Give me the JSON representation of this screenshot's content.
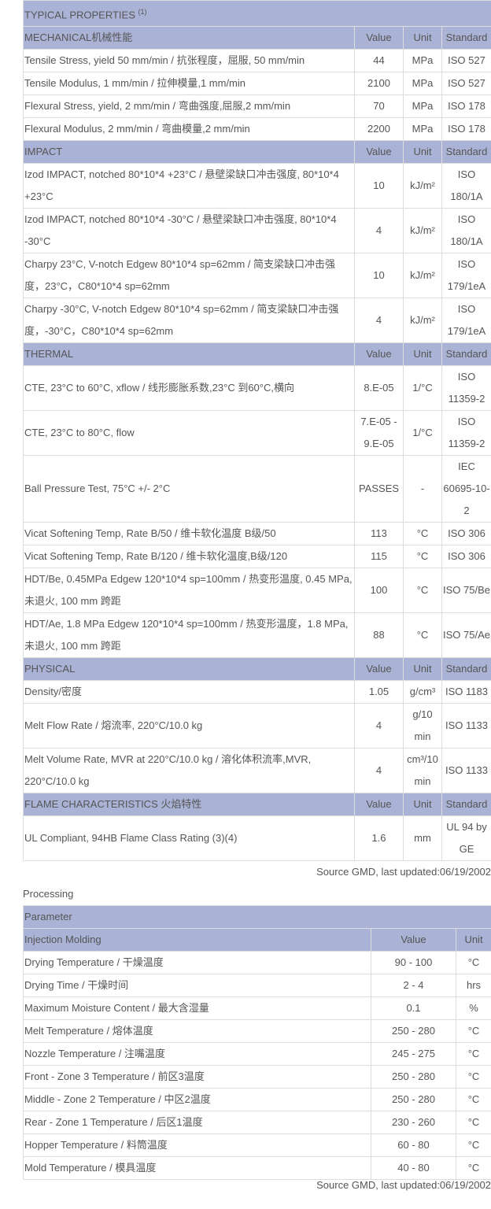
{
  "properties": {
    "title": "TYPICAL PROPERTIES",
    "title_note": "(1)",
    "sections": [
      {
        "header": [
          "MECHANICAL机械性能",
          "Value",
          "Unit",
          "Standard"
        ],
        "rows": [
          [
            "Tensile Stress, yield 50 mm/min / 抗张程度，屈服, 50 mm/min",
            "44",
            "MPa",
            "ISO 527"
          ],
          [
            "Tensile Modulus, 1 mm/min / 拉伸模量,1 mm/min",
            "2100",
            "MPa",
            "ISO 527"
          ],
          [
            "Flexural Stress, yield, 2 mm/min / 弯曲强度,屈服,2 mm/min",
            "70",
            "MPa",
            "ISO 178"
          ],
          [
            "Flexural Modulus, 2 mm/min / 弯曲模量,2 mm/min",
            "2200",
            "MPa",
            "ISO 178"
          ]
        ]
      },
      {
        "header": [
          "IMPACT",
          "Value",
          "Unit",
          "Standard"
        ],
        "rows": [
          [
            "Izod IMPACT, notched 80*10*4 +23°C / 悬壁梁缺口冲击强度, 80*10*4 +23°C",
            "10",
            "kJ/m²",
            "ISO 180/1A"
          ],
          [
            "Izod IMPACT, notched 80*10*4 -30°C / 悬壁梁缺口冲击强度, 80*10*4 -30°C",
            "4",
            "kJ/m²",
            "ISO 180/1A"
          ],
          [
            "Charpy 23°C, V-notch Edgew 80*10*4 sp=62mm / 简支梁缺口冲击强度，23°C，C80*10*4 sp=62mm",
            "10",
            "kJ/m²",
            "ISO 179/1eA"
          ],
          [
            "Charpy -30°C, V-notch Edgew 80*10*4 sp=62mm / 简支梁缺口冲击强度，-30°C，C80*10*4 sp=62mm",
            "4",
            "kJ/m²",
            "ISO 179/1eA"
          ]
        ]
      },
      {
        "header": [
          "THERMAL",
          "Value",
          "Unit",
          "Standard"
        ],
        "rows": [
          [
            "CTE, 23°C to 60°C, xflow / 线形膨胀系数,23°C 到60°C,横向",
            "8.E-05",
            "1/°C",
            "ISO 11359-2"
          ],
          [
            "CTE, 23°C to 80°C, flow",
            "7.E-05 - 9.E-05",
            "1/°C",
            "ISO 11359-2"
          ],
          [
            "Ball Pressure Test, 75°C +/- 2°C",
            "PASSES",
            "-",
            "IEC 60695-10-2"
          ],
          [
            "Vicat Softening Temp, Rate B/50 / 维卡软化温度 B级/50",
            "113",
            "°C",
            "ISO 306"
          ],
          [
            "Vicat Softening Temp, Rate B/120 / 维卡软化温度,B级/120",
            "115",
            "°C",
            "ISO 306"
          ],
          [
            "HDT/Be, 0.45MPa Edgew 120*10*4 sp=100mm / 热变形温度, 0.45 MPa, 未退火, 100 mm 跨距",
            "100",
            "°C",
            "ISO 75/Be"
          ],
          [
            "HDT/Ae, 1.8 MPa Edgew 120*10*4 sp=100mm / 热变形温度，1.8 MPa, 未退火, 100 mm 跨距",
            "88",
            "°C",
            "ISO 75/Ae"
          ]
        ]
      },
      {
        "header": [
          "PHYSICAL",
          "Value",
          "Unit",
          "Standard"
        ],
        "rows": [
          [
            "Density/密度",
            "1.05",
            "g/cm³",
            "ISO 1183"
          ],
          [
            "Melt Flow Rate / 熔流率, 220°C/10.0 kg",
            "4",
            "g/10 min",
            "ISO 1133"
          ],
          [
            "Melt Volume Rate, MVR at 220°C/10.0 kg / 溶化体积流率,MVR, 220°C/10.0 kg",
            "4",
            "cm³/10 min",
            "ISO 1133"
          ]
        ]
      },
      {
        "header": [
          "FLAME CHARACTERISTICS 火焰特性",
          "Value",
          "Unit",
          "Standard"
        ],
        "rows": [
          [
            "UL Compliant, 94HB Flame Class Rating (3)(4)",
            "1.6",
            "mm",
            "UL 94 by GE"
          ]
        ]
      }
    ],
    "source": "Source GMD, last updated:06/19/2002"
  },
  "processing": {
    "label": "Processing",
    "caption": "Parameter",
    "header": [
      "Injection Molding",
      "Value",
      "Unit"
    ],
    "rows": [
      [
        "Drying Temperature / 干燥温度",
        "90 - 100",
        "°C"
      ],
      [
        "Drying Time / 干燥时间",
        "2 - 4",
        "hrs"
      ],
      [
        "Maximum Moisture Content / 最大含湿量",
        "0.1",
        "%"
      ],
      [
        "Melt Temperature / 熔体温度",
        "250 - 280",
        "°C"
      ],
      [
        "Nozzle Temperature / 注嘴温度",
        "245 - 275",
        "°C"
      ],
      [
        "Front - Zone 3 Temperature / 前区3温度",
        "250 - 280",
        "°C"
      ],
      [
        "Middle - Zone 2 Temperature / 中区2温度",
        "250 - 280",
        "°C"
      ],
      [
        "Rear - Zone 1 Temperature / 后区1温度",
        "230 - 260",
        "°C"
      ],
      [
        "Hopper Temperature / 料筒温度",
        "60 - 80",
        "°C"
      ],
      [
        "Mold Temperature / 模具温度",
        "40 - 80",
        "°C"
      ]
    ],
    "source": "Source GMD, last updated:06/19/2002"
  }
}
